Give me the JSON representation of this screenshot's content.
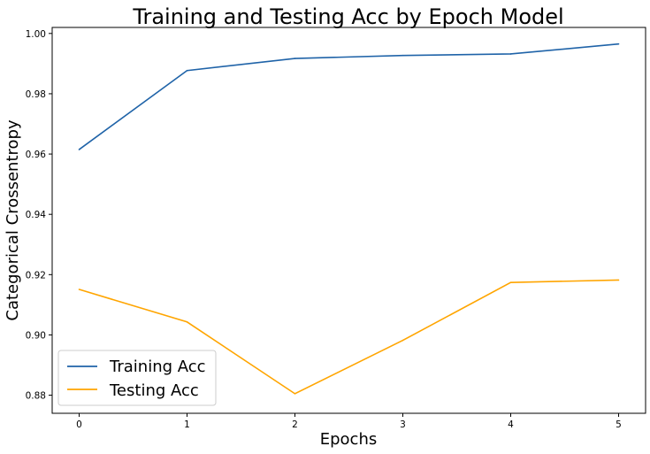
{
  "chart_data": {
    "type": "line",
    "title": "Training and Testing Acc by Epoch Model",
    "xlabel": "Epochs",
    "ylabel": "Categorical Crossentropy",
    "x": [
      0,
      1,
      2,
      3,
      4,
      5
    ],
    "xticks": [
      "0",
      "1",
      "2",
      "3",
      "4",
      "5"
    ],
    "yticks": [
      "0.88",
      "0.90",
      "0.92",
      "0.94",
      "0.96",
      "0.98",
      "1.00"
    ],
    "xlim": [
      -0.25,
      5.25
    ],
    "ylim": [
      0.874,
      1.002
    ],
    "grid": false,
    "legend_position": "lower-left",
    "series": [
      {
        "name": "Training Acc",
        "color": "#1f63a8",
        "values": [
          0.9615,
          0.9877,
          0.9917,
          0.9927,
          0.9932,
          0.9965
        ]
      },
      {
        "name": "Testing Acc",
        "color": "#ffa500",
        "values": [
          0.9151,
          0.9043,
          0.8805,
          0.8982,
          0.9174,
          0.9182
        ]
      }
    ]
  }
}
